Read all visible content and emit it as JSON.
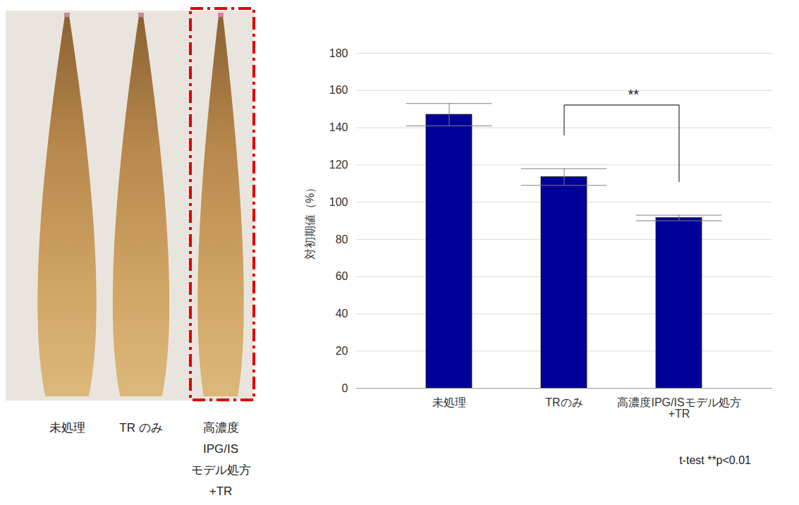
{
  "photo": {
    "labels": [
      "未処理",
      "TR のみ",
      "高濃度\nIPG/IS\nモデル処方\n+TR"
    ]
  },
  "chart_data": {
    "type": "bar",
    "categories": [
      "未処理",
      "TRのみ",
      "高濃度IPG/ISモデル処方\n+TR"
    ],
    "values": [
      147,
      113.5,
      91.5
    ],
    "errors": [
      6,
      4.5,
      1.5
    ],
    "color": "#000099",
    "y_label": "対初期値（%）",
    "ylim": [
      0,
      180
    ],
    "yticks": [
      0,
      20,
      40,
      60,
      80,
      100,
      120,
      140,
      160,
      180
    ],
    "grid": true,
    "significance": {
      "pair": [
        "TRのみ",
        "高濃度IPG/ISモデル処方\n+TR"
      ],
      "label": "**"
    },
    "footnote": "t-test **p<0.01"
  }
}
